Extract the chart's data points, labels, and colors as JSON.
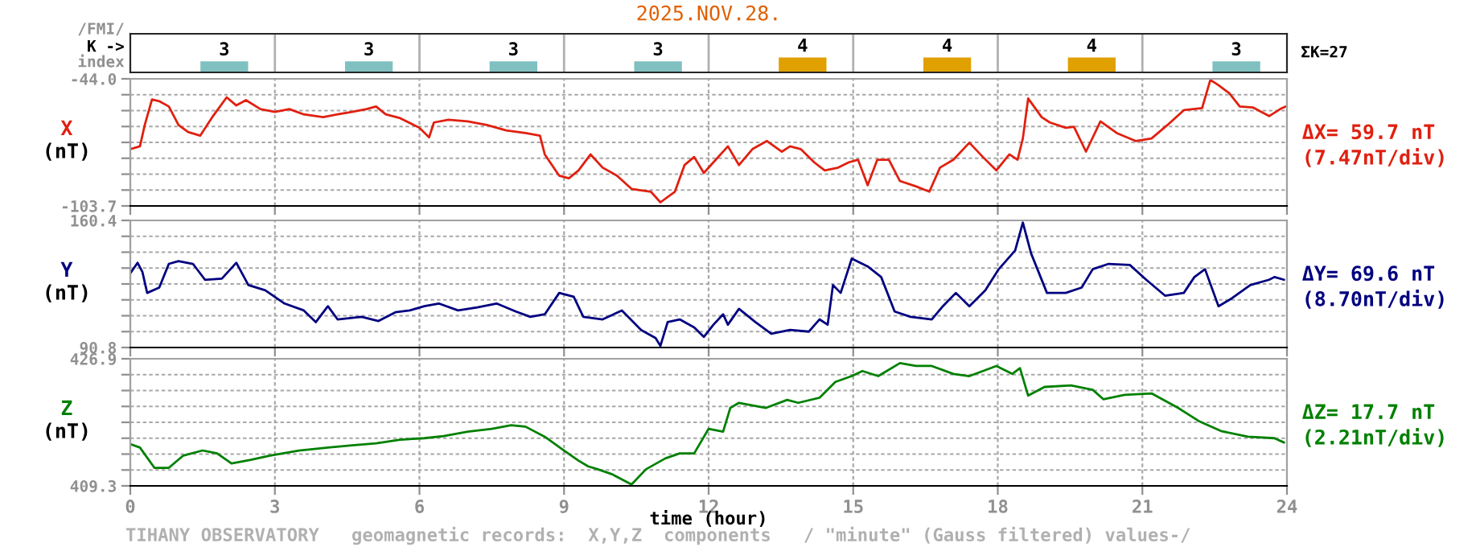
{
  "chart_data": [
    {
      "type": "bar",
      "title": "2025.NOV.28.",
      "categories": [
        null,
        null,
        null,
        null,
        null,
        null,
        null,
        null
      ],
      "values": [
        3,
        3,
        3,
        3,
        4,
        4,
        4,
        3
      ],
      "colors": [
        "#80c0c0",
        "#80c0c0",
        "#80c0c0",
        "#80c0c0",
        "#e0a000",
        "#e0a000",
        "#e0a000",
        "#80c0c0"
      ],
      "data_labels": true,
      "grid": "x",
      "tick_labels": false,
      "annotations": [
        "/FMI/",
        "K ->",
        "index",
        "ΣK=27"
      ]
    },
    {
      "type": "line",
      "ylabel": "X",
      "xlim": [
        0,
        24
      ],
      "xticks": [
        0,
        3,
        6,
        9,
        12,
        15,
        18,
        21,
        24
      ],
      "ylim": [
        -103.7,
        -44.0
      ],
      "yticks": [
        {
          "value": -44.0,
          "label": "-44.0"
        },
        {
          "value": -51.46,
          "label": null
        },
        {
          "value": -58.93,
          "label": null
        },
        {
          "value": -66.39,
          "label": null
        },
        {
          "value": -73.85,
          "label": null
        },
        {
          "value": -81.31,
          "label": null
        },
        {
          "value": -88.78,
          "label": null
        },
        {
          "value": -96.24,
          "label": null
        },
        {
          "value": -103.7,
          "label": "-103.7"
        }
      ],
      "grid": true,
      "tick_labels": "y",
      "annotations": [
        "(nT)",
        "ΔX= 59.7 nT",
        "(7.47nT/div)"
      ],
      "series": [
        {
          "color": "#e02010",
          "x": [
            0,
            0.2,
            0.3,
            0.45,
            0.6,
            0.8,
            1.0,
            1.2,
            1.45,
            1.7,
            2.0,
            2.2,
            2.4,
            2.7,
            3.0,
            3.3,
            3.6,
            4.0,
            4.3,
            4.6,
            4.9,
            5.1,
            5.3,
            5.6,
            6.0,
            6.2,
            6.3,
            6.6,
            7.0,
            7.4,
            7.8,
            8.2,
            8.5,
            8.6,
            8.9,
            9.1,
            9.3,
            9.55,
            9.8,
            10.1,
            10.4,
            10.8,
            11.0,
            11.3,
            11.5,
            11.7,
            11.9,
            12.1,
            12.4,
            12.63,
            12.91,
            13.21,
            13.52,
            13.69,
            13.91,
            14.19,
            14.41,
            14.69,
            14.91,
            15.1,
            15.3,
            15.5,
            15.74,
            15.97,
            16.3,
            16.58,
            16.8,
            17.08,
            17.41,
            17.69,
            17.97,
            18.24,
            18.41,
            18.52,
            18.63,
            18.91,
            19.08,
            19.41,
            19.58,
            19.83,
            20.13,
            20.47,
            20.86,
            21.19,
            21.52,
            21.86,
            22.24,
            22.41,
            22.58,
            22.8,
            23.02,
            23.3,
            23.63,
            23.86,
            23.97
          ],
          "values": [
            -77.0,
            -75.7,
            -65.7,
            -53.7,
            -54.5,
            -57.0,
            -65.7,
            -69.0,
            -70.7,
            -62.0,
            -52.7,
            -56.5,
            -54.0,
            -58.2,
            -59.5,
            -58.2,
            -60.7,
            -62.0,
            -60.7,
            -59.5,
            -58.2,
            -57.0,
            -60.7,
            -62.5,
            -67.0,
            -71.5,
            -64.5,
            -63.2,
            -64.0,
            -65.7,
            -68.2,
            -69.5,
            -70.7,
            -79.5,
            -89.5,
            -90.7,
            -87.0,
            -79.5,
            -85.7,
            -89.5,
            -95.7,
            -97.0,
            -102.0,
            -97.0,
            -84.5,
            -80.7,
            -88.2,
            -83.2,
            -75.7,
            -84.5,
            -77.0,
            -73.2,
            -78.2,
            -75.7,
            -77.0,
            -83.2,
            -87.0,
            -85.7,
            -83.2,
            -82.0,
            -94.0,
            -82.0,
            -82.0,
            -92.0,
            -94.5,
            -97.0,
            -85.7,
            -82.0,
            -74.0,
            -80.7,
            -87.0,
            -79.5,
            -82.0,
            -72.0,
            -53.2,
            -62.0,
            -64.5,
            -67.0,
            -66.5,
            -78.2,
            -64.0,
            -69.5,
            -73.2,
            -72.0,
            -65.7,
            -58.7,
            -57.7,
            -44.5,
            -47.0,
            -50.7,
            -57.0,
            -57.5,
            -61.5,
            -58.2,
            -57.0
          ]
        }
      ]
    },
    {
      "type": "line",
      "ylabel": "Y",
      "xlim": [
        0,
        24
      ],
      "xticks": [
        0,
        3,
        6,
        9,
        12,
        15,
        18,
        21,
        24
      ],
      "ylim": [
        90.8,
        160.4
      ],
      "yticks": [
        {
          "value": 160.4,
          "label": "160.4"
        },
        {
          "value": 151.7,
          "label": null
        },
        {
          "value": 143.0,
          "label": null
        },
        {
          "value": 134.3,
          "label": null
        },
        {
          "value": 125.6,
          "label": null
        },
        {
          "value": 116.9,
          "label": null
        },
        {
          "value": 108.2,
          "label": null
        },
        {
          "value": 99.5,
          "label": null
        },
        {
          "value": 90.8,
          "label": "90.8"
        }
      ],
      "grid": true,
      "tick_labels": "y",
      "annotations": [
        "(nT)",
        "ΔY= 69.6 nT",
        "(8.70nT/div)"
      ],
      "series": [
        {
          "color": "#000080",
          "x": [
            0,
            0.15,
            0.25,
            0.35,
            0.6,
            0.8,
            1.0,
            1.3,
            1.55,
            1.9,
            2.2,
            2.45,
            2.8,
            3.2,
            3.6,
            3.85,
            4.1,
            4.3,
            4.8,
            5.15,
            5.5,
            5.8,
            6.1,
            6.4,
            6.8,
            7.2,
            7.6,
            8.0,
            8.3,
            8.6,
            8.9,
            9.2,
            9.4,
            9.8,
            10.2,
            10.6,
            10.9,
            11.0,
            11.15,
            11.4,
            11.7,
            11.9,
            12.1,
            12.3,
            12.4,
            12.63,
            12.97,
            13.3,
            13.69,
            14.08,
            14.3,
            14.47,
            14.58,
            14.74,
            14.97,
            15.3,
            15.58,
            15.86,
            16.19,
            16.63,
            16.86,
            17.13,
            17.41,
            17.74,
            18.02,
            18.36,
            18.52,
            18.69,
            19.02,
            19.41,
            19.74,
            19.97,
            20.3,
            20.74,
            21.08,
            21.47,
            21.86,
            22.08,
            22.3,
            22.58,
            22.86,
            23.24,
            23.63,
            23.74,
            23.94
          ],
          "values": [
            131.4,
            137.2,
            132.3,
            120.7,
            123.6,
            136.6,
            138.1,
            136.6,
            127.9,
            128.5,
            137.2,
            125.0,
            122.1,
            114.9,
            111.1,
            104.7,
            113.4,
            106.2,
            107.6,
            105.3,
            110.1,
            111.1,
            113.4,
            114.9,
            111.1,
            112.8,
            114.9,
            110.5,
            107.6,
            109.0,
            120.7,
            118.6,
            107.6,
            106.2,
            111.1,
            100.4,
            96.0,
            91.7,
            104.7,
            106.2,
            101.8,
            96.6,
            103.3,
            109.0,
            103.3,
            112.0,
            104.7,
            98.3,
            100.4,
            99.5,
            106.2,
            103.3,
            125.0,
            120.7,
            139.5,
            135.2,
            129.4,
            110.5,
            107.6,
            106.2,
            113.4,
            120.7,
            113.4,
            122.1,
            133.7,
            143.9,
            159.2,
            142.4,
            120.7,
            120.7,
            123.6,
            133.7,
            136.6,
            136.0,
            127.9,
            119.2,
            120.7,
            129.4,
            133.7,
            113.4,
            117.8,
            125.0,
            127.9,
            129.4,
            127.9
          ]
        }
      ]
    },
    {
      "type": "line",
      "ylabel": "Z",
      "xlabel": "time (hour)",
      "xlim": [
        0,
        24
      ],
      "xticks": [
        0,
        3,
        6,
        9,
        12,
        15,
        18,
        21,
        24
      ],
      "ylim": [
        409.3,
        426.9
      ],
      "yticks": [
        {
          "value": 426.9,
          "label": "426.9"
        },
        {
          "value": 424.7,
          "label": null
        },
        {
          "value": 422.5,
          "label": null
        },
        {
          "value": 420.3,
          "label": null
        },
        {
          "value": 418.1,
          "label": null
        },
        {
          "value": 415.9,
          "label": null
        },
        {
          "value": 413.7,
          "label": null
        },
        {
          "value": 411.5,
          "label": null
        },
        {
          "value": 409.3,
          "label": "409.3"
        }
      ],
      "grid": true,
      "annotations": [
        "(nT)",
        "ΔZ= 17.7 nT",
        "(2.21nT/div)",
        "TIHANY OBSERVATORY   geomagnetic records:  X,Y,Z  components   / \"minute\" (Gauss filtered) values-/"
      ],
      "series": [
        {
          "color": "#008000",
          "x": [
            0,
            0.2,
            0.5,
            0.8,
            1.1,
            1.5,
            1.8,
            2.1,
            2.5,
            2.9,
            3.5,
            4.1,
            4.6,
            5.1,
            5.6,
            6.1,
            6.5,
            7.0,
            7.5,
            7.9,
            8.2,
            8.6,
            9.0,
            9.3,
            9.5,
            9.7,
            10.0,
            10.4,
            10.7,
            11.1,
            11.4,
            11.7,
            12.0,
            12.3,
            12.45,
            12.63,
            13.19,
            13.63,
            13.86,
            14.3,
            14.63,
            14.97,
            15.19,
            15.52,
            15.97,
            16.3,
            16.63,
            17.08,
            17.41,
            17.97,
            18.3,
            18.46,
            18.63,
            18.97,
            19.52,
            19.97,
            20.19,
            20.63,
            21.19,
            21.74,
            22.19,
            22.63,
            23.19,
            23.74,
            23.94
          ],
          "values": [
            415.1,
            414.6,
            411.8,
            411.8,
            413.5,
            414.2,
            413.8,
            412.4,
            412.9,
            413.5,
            414.2,
            414.6,
            414.9,
            415.2,
            415.7,
            415.9,
            416.2,
            416.8,
            417.2,
            417.7,
            417.5,
            416.1,
            414.2,
            412.8,
            412.0,
            411.6,
            410.9,
            409.5,
            411.6,
            413.1,
            413.8,
            413.8,
            417.2,
            416.8,
            420.1,
            420.8,
            420.1,
            421.2,
            420.8,
            421.5,
            423.7,
            424.5,
            425.2,
            424.5,
            426.3,
            425.9,
            425.9,
            424.8,
            424.5,
            425.9,
            424.8,
            425.6,
            421.8,
            423.0,
            423.2,
            422.6,
            421.3,
            421.9,
            422.1,
            420.1,
            418.2,
            416.9,
            416.1,
            415.9,
            415.3
          ]
        }
      ]
    }
  ]
}
